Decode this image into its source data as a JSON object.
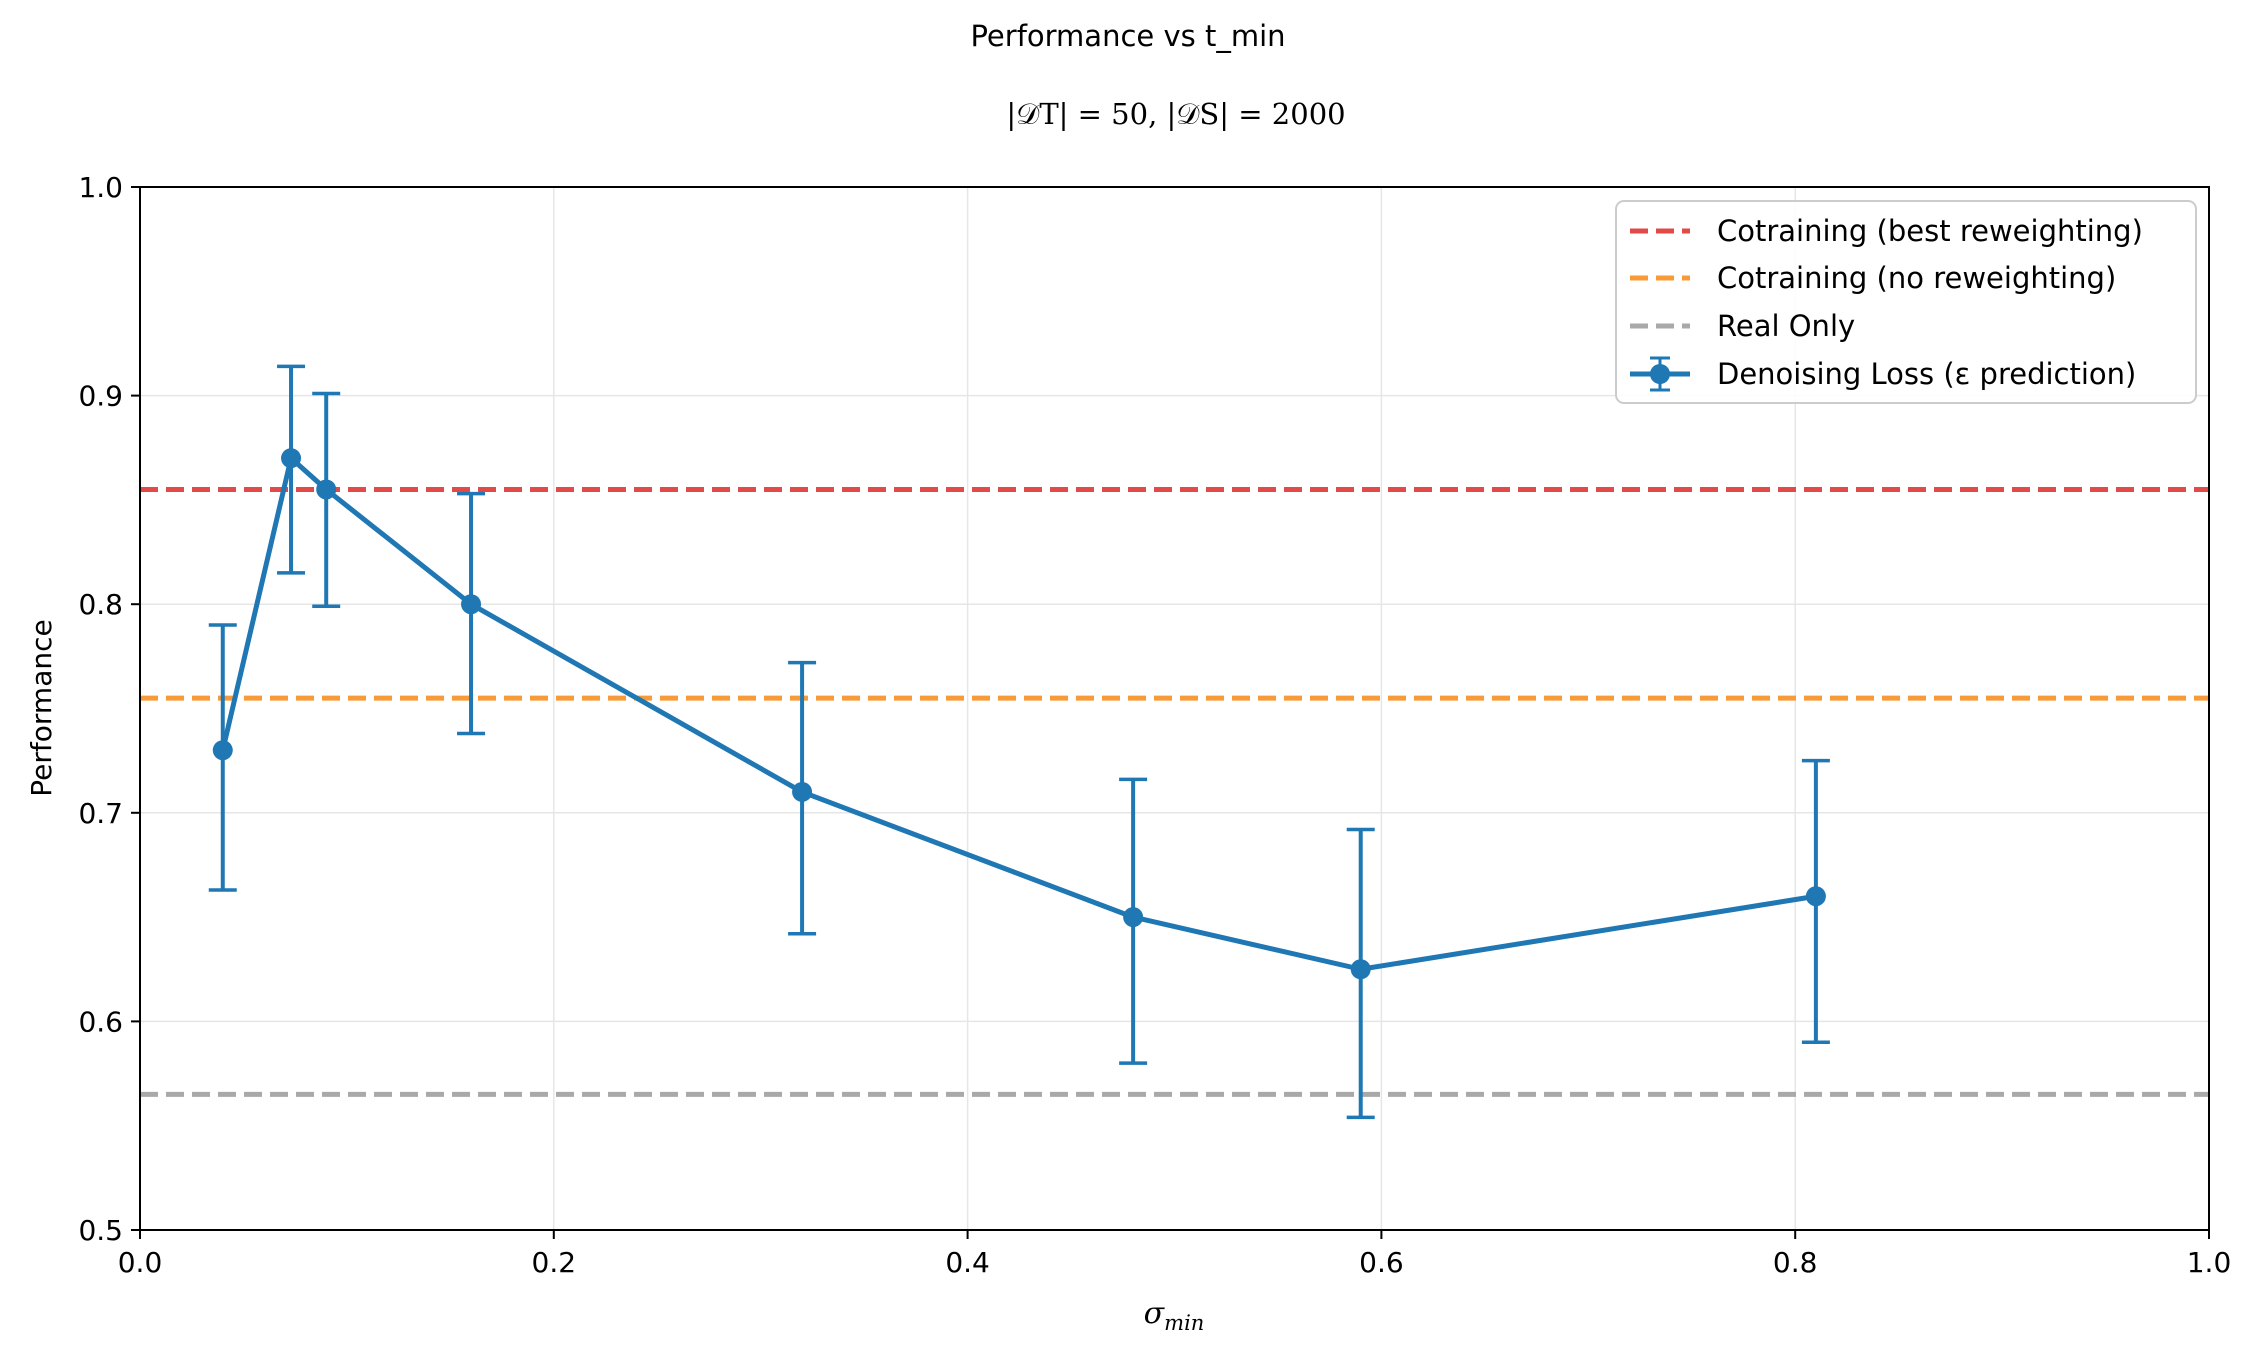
{
  "chart_data": {
    "type": "line",
    "suptitle": "Performance vs t_min",
    "title": "|𝒟T| = 50, |𝒟S| = 2000",
    "xlabel": "σmin",
    "xlabel_main": "σ",
    "xlabel_sub": "min",
    "ylabel": "Performance",
    "xlim": [
      0.0,
      1.0
    ],
    "ylim": [
      0.5,
      1.0
    ],
    "xticks": [
      "0.0",
      "0.2",
      "0.4",
      "0.6",
      "0.8",
      "1.0"
    ],
    "xtick_values": [
      0.0,
      0.2,
      0.4,
      0.6,
      0.8,
      1.0
    ],
    "yticks": [
      "0.5",
      "0.6",
      "0.7",
      "0.8",
      "0.9",
      "1.0"
    ],
    "ytick_values": [
      0.5,
      0.6,
      0.7,
      0.8,
      0.9,
      1.0
    ],
    "grid": true,
    "legend_position": "top-right",
    "hlines": [
      {
        "name": "Cotraining (best reweighting)",
        "y": 0.855,
        "color": "#e24a47",
        "style": "dashed"
      },
      {
        "name": "Cotraining (no reweighting)",
        "y": 0.755,
        "color": "#f89a37",
        "style": "dashed"
      },
      {
        "name": "Real Only",
        "y": 0.565,
        "color": "#a9a9a9",
        "style": "dashed"
      }
    ],
    "series": [
      {
        "name": "Denoising Loss (ε prediction)",
        "color": "#1f77b4",
        "x": [
          0.04,
          0.073,
          0.09,
          0.16,
          0.32,
          0.48,
          0.59,
          0.81
        ],
        "y": [
          0.73,
          0.87,
          0.855,
          0.8,
          0.71,
          0.65,
          0.625,
          0.66
        ],
        "yerr_low": [
          0.663,
          0.815,
          0.799,
          0.738,
          0.642,
          0.58,
          0.554,
          0.59
        ],
        "yerr_high": [
          0.79,
          0.914,
          0.901,
          0.853,
          0.772,
          0.716,
          0.692,
          0.725
        ]
      }
    ]
  }
}
